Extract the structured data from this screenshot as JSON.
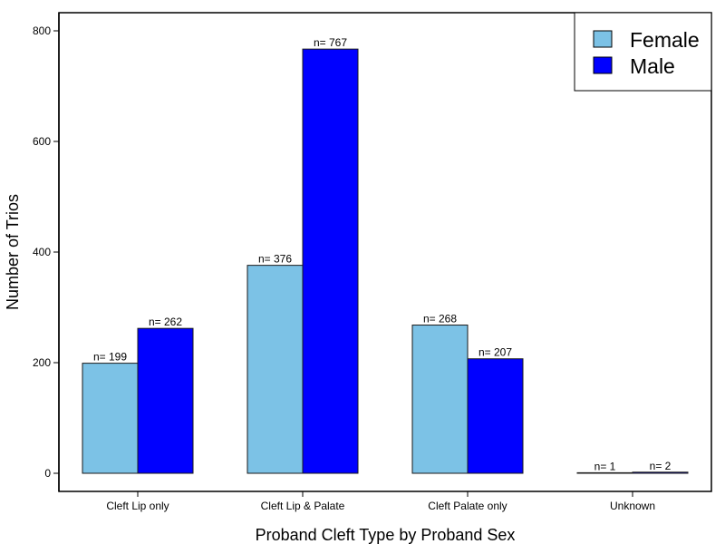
{
  "chart_data": {
    "type": "bar",
    "title": "",
    "xlabel": "Proband Cleft Type by Proband Sex",
    "ylabel": "Number of Trios",
    "categories": [
      "Cleft Lip only",
      "Cleft Lip & Palate",
      "Cleft Palate only",
      "Unknown"
    ],
    "series": [
      {
        "name": "Female",
        "values": [
          199,
          376,
          268,
          1
        ],
        "color": "#7cc2e6",
        "labels": [
          "n= 199",
          "n= 376",
          "n= 268",
          "n= 1"
        ]
      },
      {
        "name": "Male",
        "values": [
          262,
          767,
          207,
          2
        ],
        "color": "#0000ff",
        "labels": [
          "n= 262",
          "n= 767",
          "n= 207",
          "n= 2"
        ]
      }
    ],
    "yticks": [
      0,
      200,
      400,
      600,
      800
    ],
    "ylim": [
      -35,
      833
    ],
    "grid": false,
    "legend_position": "top-right"
  }
}
